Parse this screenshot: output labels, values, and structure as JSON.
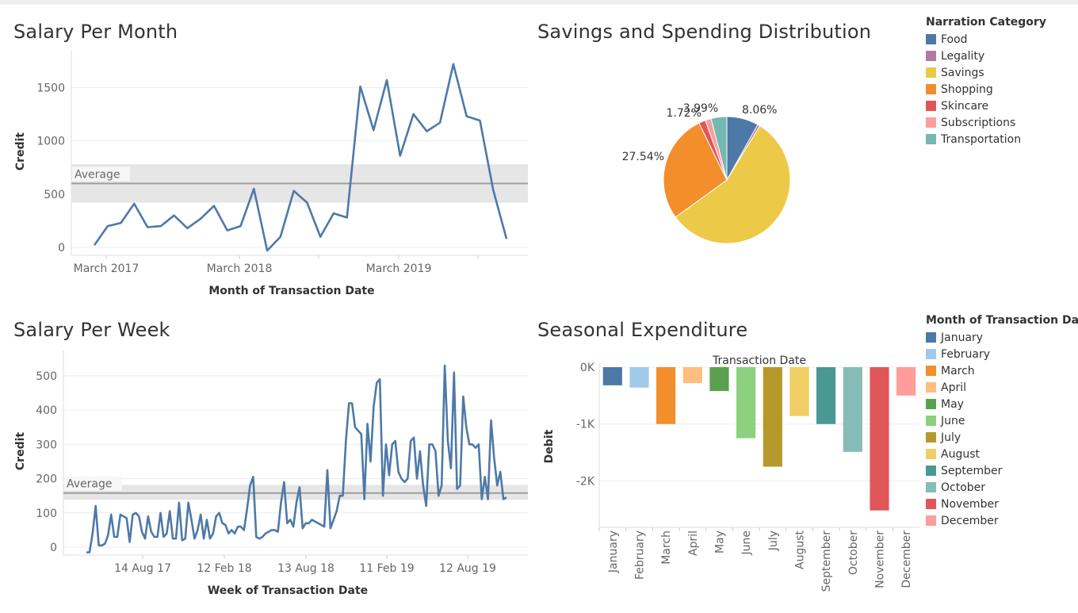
{
  "chart_data": [
    {
      "id": "salary_month",
      "type": "line",
      "title": "Salary Per Month",
      "xlabel": "Month of Transaction Date",
      "ylabel": "Credit",
      "ylim": [
        0,
        1800
      ],
      "yticks": [
        0,
        500,
        1000,
        1500
      ],
      "xtick_labels": [
        "March 2017",
        "March 2018",
        "March 2019"
      ],
      "reference_band_label": "Average",
      "average": 600,
      "band": [
        420,
        780
      ],
      "series": [
        {
          "values": [
            20,
            200,
            230,
            410,
            190,
            200,
            300,
            180,
            270,
            390,
            160,
            200,
            550,
            -30,
            100,
            530,
            420,
            100,
            320,
            280,
            1510,
            1100,
            1570,
            860,
            1250,
            1090,
            1170,
            1720,
            1230,
            1190,
            540,
            80
          ]
        }
      ],
      "color": "#4e79a7"
    },
    {
      "id": "savings_pie",
      "type": "pie",
      "title": "Savings and Spending Distribution",
      "slice_labels": [
        "8.06%",
        "27.54%",
        "1.72%",
        "3.99%"
      ],
      "slices": [
        {
          "category": "Food",
          "value": 8.06,
          "color": "#4e79a7"
        },
        {
          "category": "Legality",
          "value": 0.6,
          "color": "#b07aa1"
        },
        {
          "category": "Savings",
          "value": 56.0,
          "color": "#edc948"
        },
        {
          "category": "Shopping",
          "value": 27.54,
          "color": "#f28e2b"
        },
        {
          "category": "Skincare",
          "value": 1.72,
          "color": "#e15759"
        },
        {
          "category": "Subscriptions",
          "value": 1.5,
          "color": "#ff9d9a"
        },
        {
          "category": "Transportation",
          "value": 3.99,
          "color": "#76b7b2"
        }
      ],
      "legend_title": "Narration Category",
      "legend": [
        {
          "label": "Food",
          "color": "#4e79a7"
        },
        {
          "label": "Legality",
          "color": "#b07aa1"
        },
        {
          "label": "Savings",
          "color": "#edc948"
        },
        {
          "label": "Shopping",
          "color": "#f28e2b"
        },
        {
          "label": "Skincare",
          "color": "#e15759"
        },
        {
          "label": "Subscriptions",
          "color": "#ff9d9a"
        },
        {
          "label": "Transportation",
          "color": "#76b7b2"
        }
      ]
    },
    {
      "id": "salary_week",
      "type": "line",
      "title": "Salary Per Week",
      "xlabel": "Week of Transaction Date",
      "ylabel": "Credit",
      "ylim": [
        0,
        560
      ],
      "yticks": [
        0,
        100,
        200,
        300,
        400,
        500
      ],
      "xtick_labels": [
        "14 Aug 17",
        "12 Feb 18",
        "13 Aug 18",
        "11 Feb 19",
        "12 Aug 19"
      ],
      "reference_band_label": "Average",
      "average": 158,
      "band": [
        138,
        182
      ],
      "series": [
        {
          "values": [
            -15,
            -15,
            40,
            120,
            5,
            5,
            10,
            35,
            95,
            30,
            30,
            95,
            90,
            85,
            15,
            95,
            100,
            90,
            45,
            25,
            90,
            45,
            30,
            30,
            100,
            30,
            40,
            105,
            25,
            25,
            130,
            20,
            25,
            130,
            80,
            25,
            50,
            95,
            25,
            80,
            25,
            40,
            90,
            100,
            70,
            65,
            40,
            50,
            40,
            60,
            60,
            50,
            110,
            180,
            205,
            30,
            25,
            30,
            40,
            45,
            50,
            50,
            45,
            130,
            190,
            70,
            80,
            60,
            130,
            175,
            55,
            70,
            70,
            80,
            75,
            70,
            65,
            60,
            225,
            55,
            80,
            105,
            150,
            150,
            310,
            420,
            420,
            350,
            340,
            330,
            140,
            360,
            250,
            410,
            480,
            490,
            150,
            300,
            210,
            300,
            310,
            220,
            200,
            190,
            200,
            310,
            320,
            200,
            280,
            180,
            120,
            300,
            300,
            280,
            150,
            180,
            530,
            310,
            230,
            510,
            170,
            180,
            440,
            350,
            300,
            300,
            290,
            300,
            140,
            205,
            140,
            370,
            260,
            180,
            220,
            140,
            145
          ]
        }
      ],
      "color": "#4e79a7"
    },
    {
      "id": "seasonal",
      "type": "bar",
      "title": "Seasonal Expenditure",
      "top_label": "Transaction Date",
      "ylabel": "Debit",
      "ylim": [
        -2650,
        0
      ],
      "ytick_values": [
        0,
        -1000,
        -2000
      ],
      "ytick_labels": [
        "0K",
        "-1K",
        "-2K"
      ],
      "categories": [
        "January",
        "February",
        "March",
        "April",
        "May",
        "June",
        "July",
        "August",
        "September",
        "October",
        "November",
        "December"
      ],
      "values": [
        -320,
        -360,
        -1000,
        -280,
        -420,
        -1250,
        -1750,
        -860,
        -1000,
        -1490,
        -2520,
        -500
      ],
      "colors": [
        "#4e79a7",
        "#a0cbe8",
        "#f28e2b",
        "#ffbe7d",
        "#59a14f",
        "#8cd17d",
        "#b6992d",
        "#f1ce63",
        "#499894",
        "#86bcb6",
        "#e15759",
        "#ff9d9a"
      ],
      "legend_title": "Month of Transaction Da..",
      "legend": [
        {
          "label": "January",
          "color": "#4e79a7"
        },
        {
          "label": "February",
          "color": "#a0cbe8"
        },
        {
          "label": "March",
          "color": "#f28e2b"
        },
        {
          "label": "April",
          "color": "#ffbe7d"
        },
        {
          "label": "May",
          "color": "#59a14f"
        },
        {
          "label": "June",
          "color": "#8cd17d"
        },
        {
          "label": "July",
          "color": "#b6992d"
        },
        {
          "label": "August",
          "color": "#f1ce63"
        },
        {
          "label": "September",
          "color": "#499894"
        },
        {
          "label": "October",
          "color": "#86bcb6"
        },
        {
          "label": "November",
          "color": "#e15759"
        },
        {
          "label": "December",
          "color": "#ff9d9a"
        }
      ]
    }
  ]
}
